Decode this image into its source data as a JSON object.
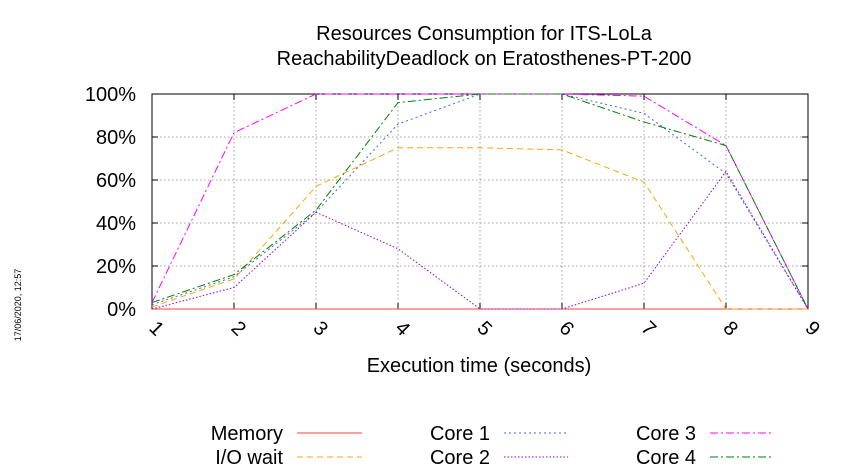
{
  "chart_data": {
    "type": "line",
    "title": "Resources Consumption for ITS-LoLa",
    "subtitle": "ReachabilityDeadlock on Eratosthenes-PT-200",
    "xlabel": "Execution time (seconds)",
    "ylabel": "",
    "x": [
      1,
      2,
      3,
      4,
      5,
      6,
      7,
      8,
      9
    ],
    "xlim": [
      1,
      9
    ],
    "ylim": [
      0,
      100
    ],
    "x_ticks": [
      "1",
      "2",
      "3",
      "4",
      "5",
      "6",
      "7",
      "8",
      "9"
    ],
    "y_ticks": [
      "0%",
      "20%",
      "40%",
      "60%",
      "80%",
      "100%"
    ],
    "grid": true,
    "legend_position": "bottom",
    "series": [
      {
        "name": "Memory",
        "color": "#ff4040",
        "dash": "solid",
        "values": [
          0,
          0,
          0,
          0,
          0,
          0,
          0,
          0,
          0
        ]
      },
      {
        "name": "I/O wait",
        "color": "#ffa500",
        "dash": "dashed",
        "values": [
          1,
          14,
          57,
          75,
          75,
          74,
          59,
          0,
          0
        ]
      },
      {
        "name": "Core 1",
        "color": "#4169e1",
        "dash": "dotted",
        "values": [
          2,
          15,
          45,
          86,
          100,
          100,
          91,
          63,
          0
        ]
      },
      {
        "name": "Core 2",
        "color": "#9400d3",
        "dash": "dotted-fine",
        "values": [
          0,
          10,
          45,
          28,
          0,
          0,
          12,
          64,
          0
        ]
      },
      {
        "name": "Core 3",
        "color": "#ff00ff",
        "dash": "dash-dot",
        "values": [
          3,
          82,
          100,
          100,
          100,
          100,
          99,
          76,
          0
        ]
      },
      {
        "name": "Core 4",
        "color": "#008000",
        "dash": "dash-dot",
        "values": [
          3,
          16,
          46,
          96,
          100,
          100,
          87,
          76,
          0
        ]
      }
    ]
  },
  "timestamp": "17/06/2020, 12:57"
}
